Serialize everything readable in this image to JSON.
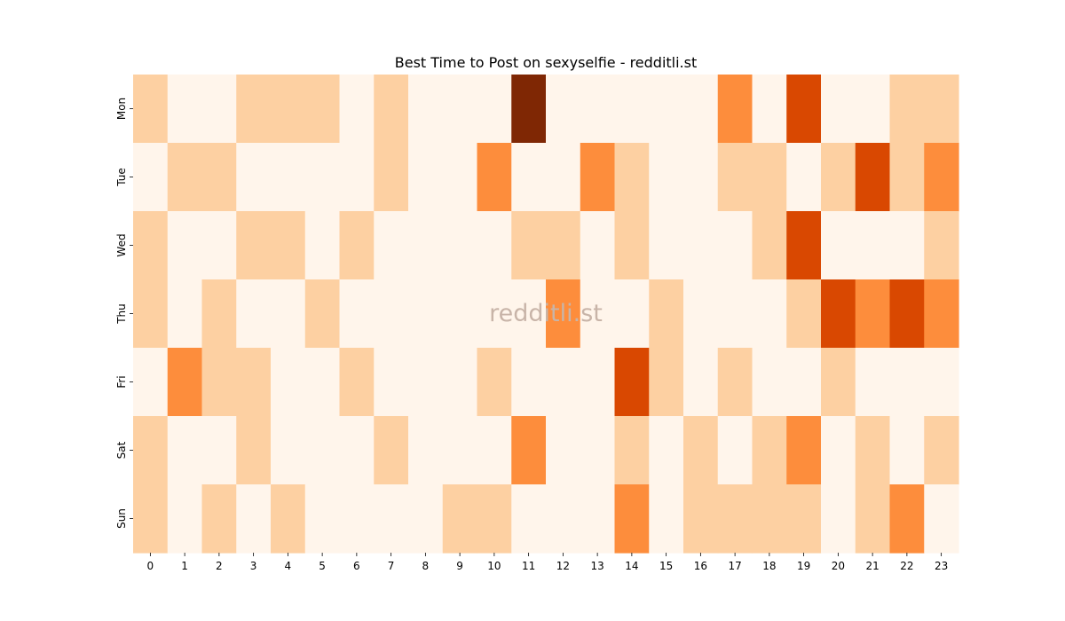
{
  "chart_data": {
    "type": "heatmap",
    "title": "Best Time to Post on sexyselfie - redditli.st",
    "xlabel": "",
    "ylabel": "",
    "x": [
      "0",
      "1",
      "2",
      "3",
      "4",
      "5",
      "6",
      "7",
      "8",
      "9",
      "10",
      "11",
      "12",
      "13",
      "14",
      "15",
      "16",
      "17",
      "18",
      "19",
      "20",
      "21",
      "22",
      "23"
    ],
    "y": [
      "Mon",
      "Tue",
      "Wed",
      "Thu",
      "Fri",
      "Sat",
      "Sun"
    ],
    "values": [
      [
        1,
        0,
        0,
        1,
        1,
        1,
        0,
        1,
        0,
        0,
        0,
        4,
        0,
        0,
        0,
        0,
        0,
        2,
        0,
        3,
        0,
        0,
        1,
        1
      ],
      [
        0,
        1,
        1,
        0,
        0,
        0,
        0,
        1,
        0,
        0,
        2,
        0,
        0,
        2,
        1,
        0,
        0,
        1,
        1,
        0,
        1,
        3,
        1,
        2
      ],
      [
        1,
        0,
        0,
        1,
        1,
        0,
        1,
        0,
        0,
        0,
        0,
        1,
        1,
        0,
        1,
        0,
        0,
        0,
        1,
        3,
        0,
        0,
        0,
        1
      ],
      [
        1,
        0,
        1,
        0,
        0,
        1,
        0,
        0,
        0,
        0,
        0,
        0,
        2,
        0,
        0,
        1,
        0,
        0,
        0,
        1,
        3,
        2,
        3,
        2
      ],
      [
        0,
        2,
        1,
        1,
        0,
        0,
        1,
        0,
        0,
        0,
        1,
        0,
        0,
        0,
        3,
        1,
        0,
        1,
        0,
        0,
        1,
        0,
        0,
        0
      ],
      [
        1,
        0,
        0,
        1,
        0,
        0,
        0,
        1,
        0,
        0,
        0,
        2,
        0,
        0,
        1,
        0,
        1,
        0,
        1,
        2,
        0,
        1,
        0,
        1
      ],
      [
        1,
        0,
        1,
        0,
        1,
        0,
        0,
        0,
        0,
        1,
        1,
        0,
        0,
        0,
        2,
        0,
        1,
        1,
        1,
        1,
        0,
        1,
        2,
        0
      ]
    ],
    "colormap": [
      "#fff5eb",
      "#fdd0a2",
      "#fd8d3c",
      "#d94801",
      "#7f2704"
    ],
    "watermark": "redditli.st"
  }
}
